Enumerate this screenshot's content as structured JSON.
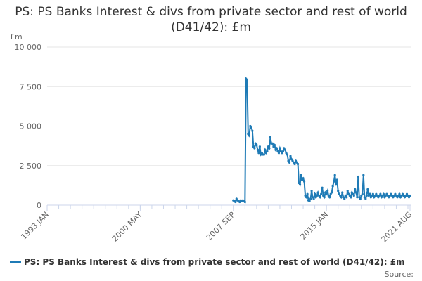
{
  "chart_data": {
    "type": "line",
    "title": "PS: PS Banks Interest & divs from private sector and rest of world (D41/42): £m",
    "y_unit_label": "£m",
    "source": "Source:",
    "categories": [
      "1993 JAN",
      null,
      null,
      null,
      null,
      null,
      null,
      null,
      null,
      null,
      null,
      null,
      null,
      null,
      null,
      null,
      null,
      null,
      null,
      null,
      null,
      null,
      null,
      null,
      null,
      null,
      null,
      null,
      null,
      null,
      null,
      null,
      null,
      null,
      null,
      null,
      null,
      null,
      null,
      null,
      null,
      null,
      null,
      null,
      null,
      null,
      null,
      null,
      null,
      null,
      null,
      null,
      null,
      null,
      null,
      null,
      null,
      null,
      null,
      null,
      null,
      null,
      null,
      null,
      null,
      null,
      null,
      null,
      null,
      null,
      null,
      null,
      null,
      null,
      null,
      null,
      null,
      null,
      null,
      null,
      null,
      null,
      null,
      null,
      null,
      null,
      null,
      null,
      "2000 MAY",
      null,
      null,
      null,
      null,
      null,
      null,
      null,
      null,
      null,
      null,
      null,
      null,
      null,
      null,
      null,
      null,
      null,
      null,
      null,
      null,
      null,
      null,
      null,
      null,
      null,
      null,
      null,
      null,
      null,
      null,
      null,
      null,
      null,
      null,
      null,
      null,
      null,
      null,
      null,
      null,
      null,
      null,
      null,
      null,
      null,
      null,
      null,
      null,
      null,
      null,
      null,
      null,
      null,
      null,
      null,
      null,
      null,
      null,
      null,
      null,
      null,
      null,
      null,
      null,
      null,
      null,
      null,
      null,
      null,
      null,
      null,
      null,
      null,
      null,
      null,
      null,
      null,
      null,
      null,
      null,
      null,
      null,
      null,
      null,
      null,
      null,
      null,
      "2007 SEP",
      null,
      null,
      null,
      null,
      null,
      null,
      null,
      null,
      null,
      null,
      null,
      null,
      null,
      null,
      null,
      null,
      null,
      null,
      null,
      null,
      null,
      null,
      null,
      null,
      null,
      null,
      null,
      null,
      null,
      null,
      null,
      null,
      null,
      null,
      null,
      null,
      null,
      null,
      null,
      null,
      null,
      null,
      null,
      null,
      null,
      null,
      null,
      null,
      null,
      null,
      null,
      null,
      null,
      null,
      null,
      null,
      null,
      null,
      null,
      null,
      null,
      null,
      null,
      null,
      null,
      null,
      null,
      null,
      null,
      null,
      null,
      null,
      null,
      null,
      null,
      null,
      null,
      null,
      null,
      null,
      null,
      null,
      null,
      null,
      null,
      null,
      null,
      "2015 JAN",
      null,
      null,
      null,
      null,
      null,
      null,
      null,
      null,
      null,
      null,
      null,
      null,
      null,
      null,
      null,
      null,
      null,
      null,
      null,
      null,
      null,
      null,
      null,
      null,
      null,
      null,
      null,
      null,
      null,
      null,
      null,
      null,
      null,
      null,
      null,
      null,
      null,
      null,
      null,
      null,
      null,
      null,
      null,
      null,
      null,
      null,
      null,
      null,
      null,
      null,
      null,
      null,
      null,
      null,
      null,
      null,
      null,
      null,
      null,
      null,
      null,
      null,
      null,
      null,
      null,
      null,
      null,
      null,
      null,
      null,
      null,
      null,
      null,
      null,
      null,
      null,
      null,
      null,
      "2021 AUG"
    ],
    "series": [
      {
        "name": "PS: PS Banks Interest & divs from private sector and rest of world (D41/42): £m",
        "color": "#1f7bb6",
        "values": [
          null,
          null,
          null,
          null,
          null,
          null,
          null,
          null,
          null,
          null,
          null,
          null,
          null,
          null,
          null,
          null,
          null,
          null,
          null,
          null,
          null,
          null,
          null,
          null,
          null,
          null,
          null,
          null,
          null,
          null,
          null,
          null,
          null,
          null,
          null,
          null,
          null,
          null,
          null,
          null,
          null,
          null,
          null,
          null,
          null,
          null,
          null,
          null,
          null,
          null,
          null,
          null,
          null,
          null,
          null,
          null,
          null,
          null,
          null,
          null,
          null,
          null,
          null,
          null,
          null,
          null,
          null,
          null,
          null,
          null,
          null,
          null,
          null,
          null,
          null,
          null,
          null,
          null,
          null,
          null,
          null,
          null,
          null,
          null,
          null,
          null,
          null,
          null,
          null,
          null,
          null,
          null,
          null,
          null,
          null,
          null,
          null,
          null,
          null,
          null,
          null,
          null,
          null,
          null,
          null,
          null,
          null,
          null,
          null,
          null,
          null,
          null,
          null,
          null,
          null,
          null,
          null,
          null,
          null,
          null,
          null,
          null,
          null,
          null,
          null,
          null,
          null,
          null,
          null,
          null,
          null,
          null,
          null,
          null,
          null,
          null,
          null,
          null,
          null,
          null,
          null,
          null,
          null,
          null,
          null,
          null,
          null,
          null,
          null,
          null,
          null,
          null,
          null,
          null,
          null,
          null,
          null,
          null,
          null,
          null,
          null,
          null,
          null,
          null,
          null,
          null,
          null,
          null,
          null,
          null,
          null,
          null,
          null,
          null,
          null,
          null,
          300,
          250,
          200,
          400,
          300,
          250,
          200,
          300,
          250,
          300,
          250,
          200,
          8000,
          7900,
          4500,
          4400,
          5000,
          4900,
          4700,
          3700,
          3600,
          3900,
          3800,
          3500,
          3300,
          3700,
          3200,
          3300,
          3200,
          3200,
          3500,
          3300,
          3400,
          3700,
          3600,
          4300,
          3900,
          3900,
          3700,
          3800,
          3500,
          3600,
          3400,
          3300,
          3600,
          3400,
          3300,
          3400,
          3600,
          3500,
          3300,
          3200,
          2800,
          2700,
          3100,
          2900,
          2800,
          2700,
          2600,
          2800,
          2700,
          2600,
          1400,
          1300,
          1900,
          1600,
          1700,
          1500,
          600,
          500,
          700,
          300,
          250,
          400,
          900,
          500,
          400,
          700,
          500,
          600,
          800,
          600,
          500,
          700,
          1100,
          600,
          500,
          800,
          700,
          900,
          600,
          500,
          700,
          800,
          1200,
          1500,
          1900,
          1300,
          1600,
          900,
          700,
          600,
          500,
          800,
          500,
          400,
          600,
          500,
          900,
          700,
          600,
          500,
          800,
          700,
          600,
          1000,
          800,
          500,
          1800,
          500,
          400,
          600,
          700,
          1900,
          500,
          400,
          600,
          1000,
          600,
          700,
          500,
          600,
          700,
          500,
          600,
          700,
          600,
          500,
          600,
          700,
          500,
          600,
          700,
          500,
          600,
          700,
          600,
          500,
          600,
          700,
          600,
          500,
          600,
          700,
          600,
          500,
          600,
          700,
          500,
          600,
          700,
          600,
          500,
          600,
          700,
          600,
          500,
          600
        ]
      }
    ],
    "ylim": [
      0,
      10000
    ],
    "yticks": [
      0,
      {
        "value": 2500,
        "label": "2 500"
      },
      {
        "value": 5000,
        "label": "5 000"
      },
      {
        "value": 7500,
        "label": "7 500"
      },
      {
        "value": 10000,
        "label": "10 000"
      }
    ],
    "grid": true,
    "legend": "bottom"
  }
}
